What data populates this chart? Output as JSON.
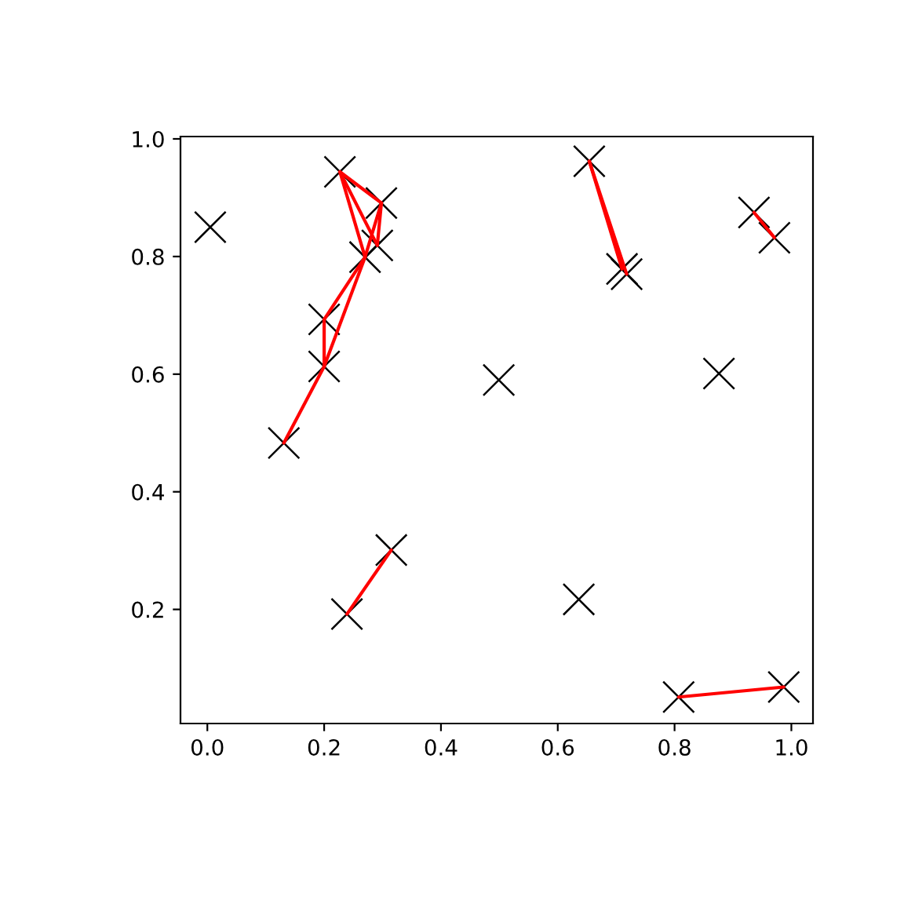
{
  "chart_data": {
    "type": "scatter",
    "xlim": [
      -0.046,
      1.037
    ],
    "ylim": [
      0.006,
      1.004
    ],
    "xticks": [
      {
        "value": 0,
        "label": "0.0"
      },
      0.2,
      0.4,
      0.6,
      0.8,
      {
        "value": 1,
        "label": "1.0"
      }
    ],
    "yticks": [
      0.2,
      0.4,
      0.6,
      0.8,
      {
        "value": 1,
        "label": "1.0"
      }
    ],
    "series": [
      {
        "color": "#000000",
        "marker": "cross",
        "x": [
          0.005,
          0.227,
          0.298,
          0.291,
          0.27,
          0.2,
          0.2,
          0.131,
          0.499,
          0.654,
          0.71,
          0.718,
          0.936,
          0.971,
          0.876,
          0.315,
          0.239,
          0.636,
          0.807,
          0.987
        ],
        "values": [
          0.85,
          0.944,
          0.891,
          0.819,
          0.799,
          0.693,
          0.613,
          0.483,
          0.59,
          0.962,
          0.779,
          0.77,
          0.875,
          0.832,
          0.601,
          0.301,
          0.192,
          0.217,
          0.051,
          0.068
        ]
      },
      {
        "type": "line",
        "color": "#ff0000",
        "x": [
          0.227,
          0.298
        ],
        "values": [
          0.944,
          0.891
        ]
      },
      {
        "type": "line",
        "color": "#ff0000",
        "x": [
          0.227,
          0.291
        ],
        "values": [
          0.944,
          0.819
        ]
      },
      {
        "type": "line",
        "color": "#ff0000",
        "x": [
          0.227,
          0.27
        ],
        "values": [
          0.944,
          0.799
        ]
      },
      {
        "type": "line",
        "color": "#ff0000",
        "x": [
          0.298,
          0.291
        ],
        "values": [
          0.891,
          0.819
        ]
      },
      {
        "type": "line",
        "color": "#ff0000",
        "x": [
          0.298,
          0.27
        ],
        "values": [
          0.891,
          0.799
        ]
      },
      {
        "type": "line",
        "color": "#ff0000",
        "x": [
          0.27,
          0.2
        ],
        "values": [
          0.799,
          0.693
        ]
      },
      {
        "type": "line",
        "color": "#ff0000",
        "x": [
          0.27,
          0.2
        ],
        "values": [
          0.799,
          0.613
        ]
      },
      {
        "type": "line",
        "color": "#ff0000",
        "x": [
          0.2,
          0.2
        ],
        "values": [
          0.693,
          0.613
        ]
      },
      {
        "type": "line",
        "color": "#ff0000",
        "x": [
          0.2,
          0.131
        ],
        "values": [
          0.613,
          0.483
        ]
      },
      {
        "type": "line",
        "color": "#ff0000",
        "x": [
          0.654,
          0.71
        ],
        "values": [
          0.962,
          0.779
        ]
      },
      {
        "type": "line",
        "color": "#ff0000",
        "x": [
          0.654,
          0.718
        ],
        "values": [
          0.962,
          0.77
        ]
      },
      {
        "type": "line",
        "color": "#ff0000",
        "x": [
          0.936,
          0.971
        ],
        "values": [
          0.875,
          0.832
        ]
      },
      {
        "type": "line",
        "color": "#ff0000",
        "x": [
          0.315,
          0.239
        ],
        "values": [
          0.301,
          0.192
        ]
      },
      {
        "type": "line",
        "color": "#ff0000",
        "x": [
          0.807,
          0.987
        ],
        "values": [
          0.051,
          0.068
        ]
      }
    ]
  }
}
